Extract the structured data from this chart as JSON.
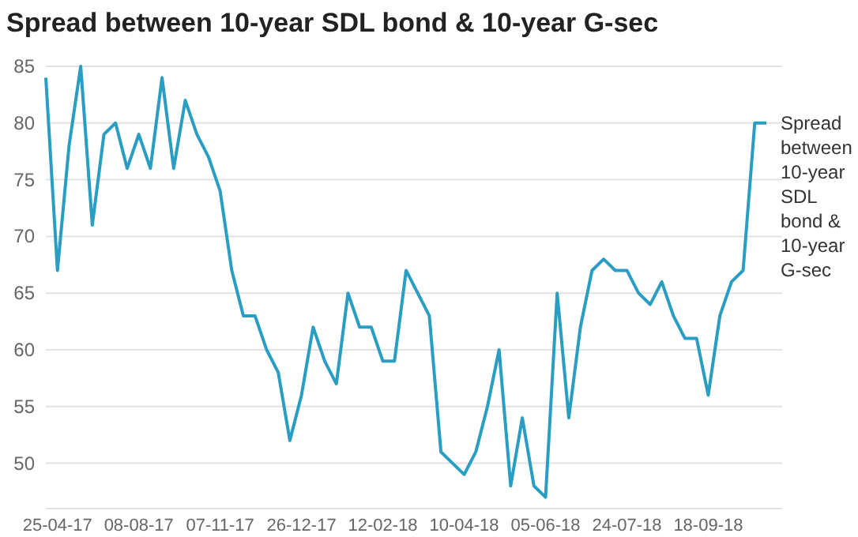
{
  "chart_data": {
    "type": "line",
    "title": "Spread between 10-year SDL bond & 10-year G-sec",
    "categories": [
      null,
      "25-04-17",
      null,
      null,
      null,
      null,
      null,
      null,
      "08-08-17",
      null,
      null,
      null,
      null,
      null,
      null,
      "07-11-17",
      null,
      null,
      null,
      null,
      null,
      null,
      "26-12-17",
      null,
      null,
      null,
      null,
      null,
      null,
      "12-02-18",
      null,
      null,
      null,
      null,
      null,
      null,
      "10-04-18",
      null,
      null,
      null,
      null,
      null,
      null,
      "05-06-18",
      null,
      null,
      null,
      null,
      null,
      null,
      "24-07-18",
      null,
      null,
      null,
      null,
      null,
      null,
      "18-09-18",
      null,
      null,
      null,
      null,
      null
    ],
    "series": [
      {
        "name": "Spread between 10-year SDL bond & 10-year G-sec",
        "color": "#2a9ec2",
        "values": [
          84,
          67,
          78,
          85,
          71,
          79,
          80,
          76,
          79,
          76,
          84,
          76,
          82,
          79,
          77,
          74,
          67,
          63,
          63,
          60,
          58,
          52,
          56,
          62,
          59,
          57,
          65,
          62,
          62,
          59,
          59,
          67,
          65,
          63,
          51,
          50,
          49,
          51,
          55,
          60,
          48,
          54,
          48,
          47,
          65,
          54,
          62,
          67,
          68,
          67,
          67,
          65,
          64,
          66,
          63,
          61,
          61,
          56,
          63,
          66,
          67,
          80,
          80
        ]
      }
    ],
    "ylim": [
      46,
      85
    ],
    "yticks": [
      50,
      55,
      60,
      65,
      70,
      75,
      80,
      85
    ],
    "grid": "y",
    "legend": false,
    "marker": "none",
    "line_style": "solid"
  }
}
